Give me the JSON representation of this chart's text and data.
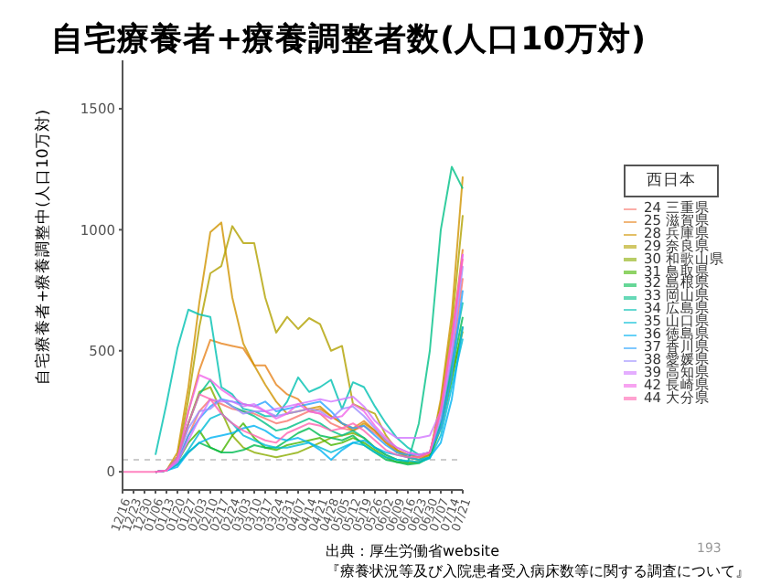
{
  "chart_data": {
    "type": "line",
    "title": "自宅療養者+療養調整者数(人口10万対)",
    "ylabel": "自宅療養者+療養調整中(人口10万対)",
    "legend_title": "西日本",
    "legend": "right",
    "grid": false,
    "ylim": [
      -75,
      1700
    ],
    "yticks": [
      0,
      500,
      1000,
      1500
    ],
    "categories": [
      "12/16",
      "12/23",
      "12/30",
      "01/06",
      "01/13",
      "01/20",
      "01/27",
      "02/03",
      "02/10",
      "02/17",
      "02/24",
      "03/03",
      "03/10",
      "03/17",
      "03/24",
      "03/31",
      "04/07",
      "04/14",
      "04/21",
      "04/28",
      "05/05",
      "05/12",
      "05/19",
      "05/26",
      "06/02",
      "06/09",
      "06/16",
      "06/23",
      "06/30",
      "07/07",
      "07/14",
      "07/21"
    ],
    "ref_lines": [
      {
        "axis": "y",
        "value": 50,
        "color": "#cccccc",
        "line_style": "dashed"
      }
    ],
    "annotations": [
      "出典：厚生労働省website",
      "『療養状況等及び入院患者受入病床数等に関する調査について』",
      "193"
    ],
    "series": [
      {
        "name": "24 三重県",
        "color": "#f8766d",
        "values": [
          null,
          null,
          null,
          0,
          5,
          40,
          150,
          250,
          300,
          280,
          260,
          250,
          240,
          220,
          200,
          210,
          230,
          250,
          240,
          200,
          180,
          170,
          190,
          160,
          120,
          90,
          70,
          60,
          70,
          200,
          450,
          800
        ]
      },
      {
        "name": "25 滋賀県",
        "color": "#e7851e",
        "values": [
          null,
          null,
          null,
          0,
          5,
          60,
          250,
          420,
          545,
          530,
          520,
          510,
          440,
          440,
          360,
          320,
          300,
          250,
          260,
          230,
          200,
          180,
          210,
          170,
          130,
          90,
          70,
          60,
          80,
          250,
          550,
          920
        ]
      },
      {
        "name": "28 兵庫県",
        "color": "#d09400",
        "values": [
          null,
          null,
          null,
          0,
          5,
          80,
          350,
          700,
          990,
          1030,
          720,
          530,
          440,
          360,
          290,
          240,
          250,
          260,
          270,
          230,
          200,
          170,
          200,
          170,
          120,
          80,
          60,
          50,
          70,
          300,
          650,
          1220
        ]
      },
      {
        "name": "29 奈良県",
        "color": "#b2a100",
        "values": [
          null,
          null,
          null,
          0,
          5,
          60,
          300,
          600,
          820,
          850,
          1015,
          945,
          945,
          720,
          575,
          640,
          590,
          635,
          610,
          500,
          520,
          280,
          260,
          240,
          150,
          90,
          60,
          50,
          70,
          280,
          600,
          1060
        ]
      },
      {
        "name": "30 和歌山県",
        "color": "#89ac00",
        "values": [
          null,
          null,
          null,
          0,
          5,
          50,
          200,
          330,
          350,
          250,
          150,
          100,
          80,
          70,
          60,
          70,
          80,
          100,
          120,
          140,
          150,
          160,
          140,
          100,
          70,
          50,
          40,
          40,
          60,
          200,
          400,
          580
        ]
      },
      {
        "name": "31 鳥取県",
        "color": "#45b500",
        "values": [
          null,
          null,
          null,
          0,
          5,
          40,
          120,
          170,
          100,
          80,
          150,
          200,
          140,
          100,
          90,
          110,
          120,
          130,
          140,
          110,
          120,
          140,
          120,
          90,
          60,
          40,
          35,
          40,
          60,
          180,
          380,
          600
        ]
      },
      {
        "name": "32 島根県",
        "color": "#00bc51",
        "values": [
          null,
          null,
          null,
          0,
          5,
          30,
          80,
          120,
          100,
          80,
          80,
          90,
          110,
          100,
          100,
          130,
          160,
          180,
          150,
          140,
          130,
          150,
          110,
          80,
          50,
          40,
          30,
          35,
          60,
          200,
          420,
          640
        ]
      },
      {
        "name": "33 岡山県",
        "color": "#00c087",
        "values": [
          null,
          null,
          null,
          0,
          5,
          60,
          200,
          320,
          380,
          300,
          270,
          250,
          230,
          200,
          170,
          180,
          200,
          220,
          200,
          170,
          150,
          170,
          140,
          100,
          70,
          50,
          40,
          200,
          500,
          1000,
          1260,
          1170
        ]
      },
      {
        "name": "34 広島県",
        "color": "#00c0b2",
        "values": [
          null,
          null,
          null,
          70,
          280,
          510,
          670,
          650,
          640,
          350,
          320,
          260,
          250,
          230,
          230,
          290,
          390,
          330,
          350,
          380,
          260,
          370,
          350,
          270,
          200,
          140,
          100,
          70,
          80,
          200,
          450,
          700
        ]
      },
      {
        "name": "35 山口県",
        "color": "#00bcd6",
        "values": [
          null,
          null,
          null,
          0,
          5,
          30,
          90,
          160,
          220,
          240,
          200,
          150,
          130,
          110,
          100,
          100,
          110,
          120,
          100,
          80,
          100,
          120,
          110,
          80,
          60,
          50,
          45,
          40,
          55,
          150,
          350,
          550
        ]
      },
      {
        "name": "36 徳島県",
        "color": "#00b3f2",
        "values": [
          null,
          null,
          null,
          0,
          5,
          20,
          80,
          120,
          140,
          150,
          160,
          180,
          190,
          170,
          140,
          130,
          140,
          120,
          90,
          50,
          90,
          120,
          130,
          100,
          80,
          70,
          60,
          50,
          60,
          120,
          300,
          600
        ]
      },
      {
        "name": "37 香川県",
        "color": "#29a3ff",
        "values": [
          null,
          null,
          null,
          0,
          5,
          40,
          150,
          220,
          270,
          300,
          290,
          280,
          270,
          290,
          250,
          260,
          270,
          280,
          290,
          250,
          200,
          180,
          190,
          150,
          110,
          80,
          70,
          70,
          80,
          180,
          400,
          750
        ]
      },
      {
        "name": "38 愛媛県",
        "color": "#9c8dff",
        "values": [
          null,
          null,
          null,
          0,
          5,
          50,
          180,
          250,
          260,
          300,
          270,
          240,
          250,
          250,
          230,
          240,
          250,
          260,
          250,
          220,
          260,
          270,
          230,
          180,
          130,
          100,
          80,
          70,
          80,
          220,
          480,
          850
        ]
      },
      {
        "name": "39 高知県",
        "color": "#d277ff",
        "values": [
          null,
          null,
          null,
          0,
          5,
          40,
          130,
          220,
          300,
          290,
          290,
          270,
          280,
          250,
          260,
          270,
          280,
          290,
          300,
          290,
          300,
          310,
          270,
          210,
          170,
          140,
          140,
          140,
          150,
          250,
          500,
          900
        ]
      },
      {
        "name": "42 長崎県",
        "color": "#f166e8",
        "values": [
          null,
          null,
          null,
          0,
          5,
          50,
          250,
          400,
          380,
          340,
          310,
          280,
          270,
          250,
          220,
          240,
          280,
          250,
          240,
          220,
          230,
          280,
          250,
          190,
          140,
          100,
          80,
          70,
          80,
          250,
          550,
          900
        ]
      },
      {
        "name": "44 大分県",
        "color": "#ff64b0",
        "values": [
          0,
          0,
          0,
          0,
          5,
          60,
          200,
          320,
          300,
          240,
          200,
          170,
          150,
          130,
          120,
          160,
          180,
          200,
          190,
          170,
          180,
          200,
          170,
          130,
          90,
          70,
          60,
          60,
          80,
          260,
          560,
          880
        ]
      }
    ]
  }
}
